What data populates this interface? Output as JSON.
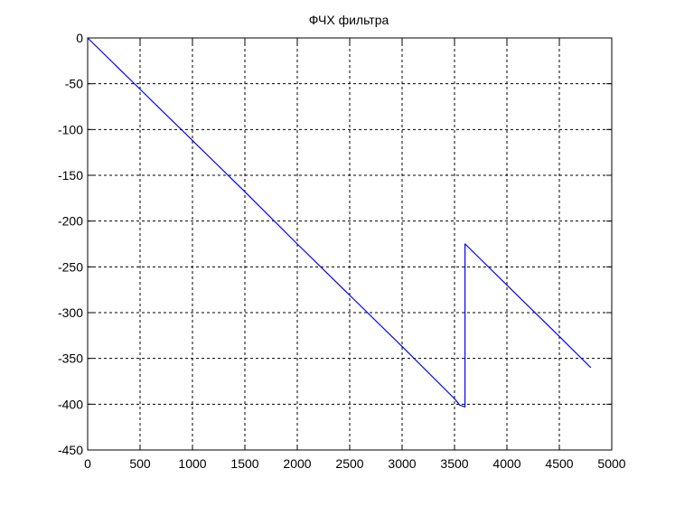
{
  "chart_data": {
    "type": "line",
    "title": "ФЧХ фильтра",
    "xlabel": "",
    "ylabel": "",
    "xlim": [
      0,
      5000
    ],
    "ylim": [
      -450,
      0
    ],
    "grid": true,
    "x_ticks": [
      0,
      500,
      1000,
      1500,
      2000,
      2500,
      3000,
      3500,
      4000,
      4500,
      5000
    ],
    "y_ticks": [
      0,
      -50,
      -100,
      -150,
      -200,
      -250,
      -300,
      -350,
      -400,
      -450
    ],
    "x_tick_labels": [
      "0",
      "500",
      "1000",
      "1500",
      "2000",
      "2500",
      "3000",
      "3500",
      "4000",
      "4500",
      "5000"
    ],
    "y_tick_labels": [
      "0",
      "-50",
      "-100",
      "-150",
      "-200",
      "-250",
      "-300",
      "-350",
      "-400",
      "-450"
    ],
    "series": [
      {
        "color": "#0000ff",
        "x": [
          0,
          500,
          1000,
          1500,
          2000,
          2500,
          3000,
          3500,
          3550,
          3600,
          3600,
          3610,
          4000,
          4500,
          4800
        ],
        "y": [
          0,
          -56,
          -112,
          -168,
          -225,
          -281,
          -337,
          -394,
          -401,
          -403,
          -225,
          -226,
          -270,
          -326,
          -360
        ]
      }
    ],
    "colors": {
      "line": "#0000ff",
      "axes": "#000000",
      "grid": "#000000",
      "background": "#ffffff"
    }
  }
}
